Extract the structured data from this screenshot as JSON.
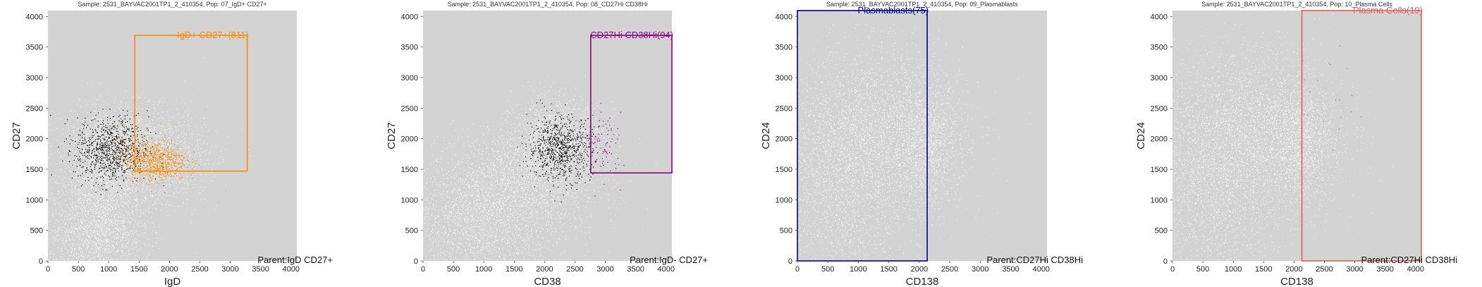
{
  "chart_data": [
    {
      "type": "scatter",
      "title": "Sample: 2531_BAYVAC2001TP1_2_410354, Pop: 07_IgD+ CD27+",
      "xlabel": "IgD",
      "ylabel": "CD27",
      "xlim": [
        0,
        4096
      ],
      "ylim": [
        0,
        4096
      ],
      "xticks": [
        0,
        500,
        1000,
        1500,
        2000,
        2500,
        3000,
        3500,
        4000
      ],
      "yticks": [
        0,
        500,
        1000,
        1500,
        2000,
        2500,
        3000,
        3500,
        4000
      ],
      "gate": {
        "label": "IgD+ CD27+(811)",
        "color": "#ff8c00",
        "x": [
          1430,
          3280
        ],
        "y": [
          1470,
          3690
        ]
      },
      "parent_label": "Parent:IgD CD27+",
      "background_color": "#d3d3d3",
      "parent_color": "#000000",
      "clusters": [
        {
          "cx": 1000,
          "cy": 1800,
          "sx": 330,
          "sy": 340,
          "density": 0.8
        },
        {
          "cx": 800,
          "cy": 600,
          "sx": 380,
          "sy": 520,
          "density": 1.0
        },
        {
          "cx": 1700,
          "cy": 1700,
          "sx": 450,
          "sy": 380,
          "density": 0.6
        }
      ],
      "parent_cluster": {
        "cx": 1050,
        "cy": 1820,
        "sx": 300,
        "sy": 270,
        "n": 900
      },
      "gate_cluster": {
        "cx": 1750,
        "cy": 1650,
        "sx": 260,
        "sy": 170,
        "n": 811
      }
    },
    {
      "type": "scatter",
      "title": "Sample: 2531_BAYVAC2001TP1_2_410354, Pop: 08_CD27Hi CD38Hi",
      "xlabel": "CD38",
      "ylabel": "CD27",
      "xlim": [
        0,
        4096
      ],
      "ylim": [
        0,
        4096
      ],
      "xticks": [
        0,
        500,
        1000,
        1500,
        2000,
        2500,
        3000,
        3500,
        4000
      ],
      "yticks": [
        0,
        500,
        1000,
        1500,
        2000,
        2500,
        3000,
        3500,
        4000
      ],
      "gate": {
        "label": "CD27Hi CD38Hi(94)",
        "color": "#8b008b",
        "x": [
          2760,
          4096
        ],
        "y": [
          1440,
          3690
        ]
      },
      "parent_label": "Parent:IgD- CD27+",
      "background_color": "#d3d3d3",
      "parent_color": "#000000",
      "clusters": [
        {
          "cx": 2200,
          "cy": 1900,
          "sx": 380,
          "sy": 340,
          "density": 0.9
        },
        {
          "cx": 900,
          "cy": 700,
          "sx": 650,
          "sy": 520,
          "density": 0.9
        },
        {
          "cx": 1700,
          "cy": 1300,
          "sx": 600,
          "sy": 450,
          "density": 0.6
        }
      ],
      "parent_cluster": {
        "cx": 2250,
        "cy": 1850,
        "sx": 260,
        "sy": 260,
        "n": 800
      },
      "gate_cluster": {
        "cx": 2950,
        "cy": 1850,
        "sx": 160,
        "sy": 280,
        "n": 94
      }
    },
    {
      "type": "scatter",
      "title": "Sample: 2531_BAYVAC2001TP1_2_410354, Pop: 09_Plasmablasts",
      "xlabel": "CD138",
      "ylabel": "CD24",
      "xlim": [
        0,
        4096
      ],
      "ylim": [
        0,
        4096
      ],
      "xticks": [
        0,
        500,
        1000,
        1500,
        2000,
        2500,
        3000,
        3500,
        4000
      ],
      "yticks": [
        0,
        500,
        1000,
        1500,
        2000,
        2500,
        3000,
        3500,
        4000
      ],
      "gate": {
        "label": "Plasmablasts(75)",
        "color": "#00008b",
        "x": [
          0,
          2130
        ],
        "y": [
          0,
          4096
        ]
      },
      "parent_label": "Parent:CD27Hi CD38Hi",
      "background_color": "#d3d3d3",
      "parent_color": "#000000",
      "clusters": [
        {
          "cx": 1300,
          "cy": 2200,
          "sx": 700,
          "sy": 650,
          "density": 1.0
        },
        {
          "cx": 700,
          "cy": 1200,
          "sx": 550,
          "sy": 800,
          "density": 0.8
        },
        {
          "cx": 2100,
          "cy": 1900,
          "sx": 280,
          "sy": 500,
          "density": 0.5
        }
      ],
      "parent_cluster": {
        "cx": 0,
        "cy": 0,
        "sx": 1,
        "sy": 1,
        "n": 0
      },
      "gate_cluster": {
        "cx": 0,
        "cy": 0,
        "sx": 1,
        "sy": 1,
        "n": 0
      }
    },
    {
      "type": "scatter",
      "title": "Sample: 2531_BAYVAC2001TP1_2_410354, Pop: 10_Plasma Cells",
      "xlabel": "CD138",
      "ylabel": "CD24",
      "xlim": [
        0,
        4096
      ],
      "ylim": [
        0,
        4096
      ],
      "xticks": [
        0,
        500,
        1000,
        1500,
        2000,
        2500,
        3000,
        3500,
        4000
      ],
      "yticks": [
        0,
        500,
        1000,
        1500,
        2000,
        2500,
        3000,
        3500,
        4000
      ],
      "gate": {
        "label": "Plasma Cells(19)",
        "color": "#e06060",
        "x": [
          2130,
          4096
        ],
        "y": [
          0,
          4096
        ]
      },
      "parent_label": "Parent:CD27Hi CD38Hi",
      "background_color": "#d3d3d3",
      "parent_color": "#000000",
      "clusters": [
        {
          "cx": 1300,
          "cy": 2200,
          "sx": 700,
          "sy": 650,
          "density": 1.0
        },
        {
          "cx": 700,
          "cy": 1200,
          "sx": 550,
          "sy": 800,
          "density": 0.8
        },
        {
          "cx": 2100,
          "cy": 1900,
          "sx": 280,
          "sy": 500,
          "density": 0.5
        }
      ],
      "parent_cluster": {
        "cx": 0,
        "cy": 0,
        "sx": 1,
        "sy": 1,
        "n": 0
      },
      "gate_cluster": {
        "cx": 2600,
        "cy": 2700,
        "sx": 250,
        "sy": 450,
        "n": 19
      }
    }
  ]
}
